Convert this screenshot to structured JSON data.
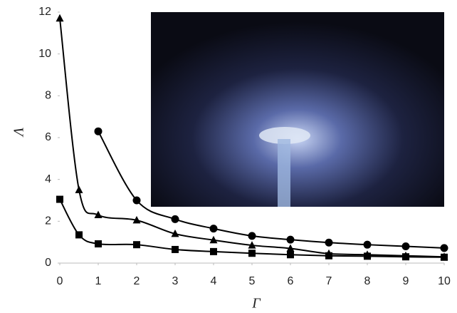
{
  "chart_data": {
    "type": "line",
    "x_label": "Γ",
    "y_label": "Λ",
    "xlim": [
      0,
      10
    ],
    "xticks": [
      0,
      1,
      2,
      3,
      4,
      5,
      6,
      7,
      8,
      9,
      10
    ],
    "ylim": [
      0,
      12
    ],
    "yticks": [
      0,
      2,
      4,
      6,
      8,
      10,
      12
    ],
    "grid": false,
    "series": [
      {
        "color": "#000000",
        "marker": "triangle",
        "x": [
          0,
          0.5,
          1,
          2,
          3,
          4,
          5,
          6,
          7,
          8,
          9,
          10
        ],
        "values": [
          11.7,
          3.5,
          2.3,
          2.05,
          1.4,
          1.1,
          0.85,
          0.7,
          0.45,
          0.4,
          0.35,
          0.3
        ]
      },
      {
        "color": "#000000",
        "marker": "circle",
        "x": [
          1,
          2,
          3,
          4,
          5,
          6,
          7,
          8,
          9,
          10
        ],
        "values": [
          6.3,
          3.0,
          2.1,
          1.65,
          1.3,
          1.12,
          0.98,
          0.88,
          0.8,
          0.72
        ]
      },
      {
        "color": "#000000",
        "marker": "square",
        "x": [
          0,
          0.5,
          1,
          2,
          3,
          4,
          5,
          6,
          7,
          8,
          9,
          10
        ],
        "values": [
          3.05,
          1.35,
          0.92,
          0.88,
          0.65,
          0.55,
          0.47,
          0.4,
          0.35,
          0.33,
          0.3,
          0.28
        ]
      }
    ]
  }
}
